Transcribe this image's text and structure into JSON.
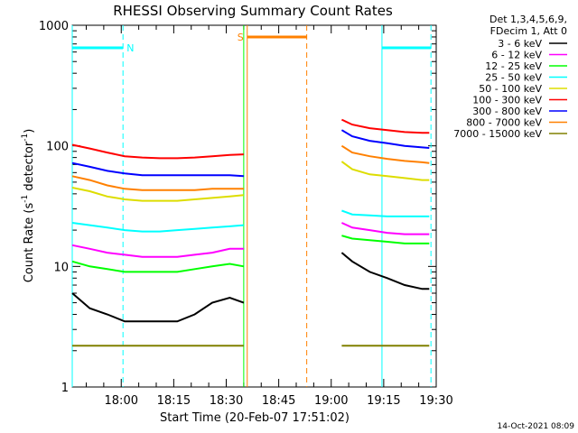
{
  "chart_data": {
    "type": "line",
    "title": "RHESSI Observing Summary Count Rates",
    "xlabel": "Start Time (20-Feb-07 17:51:02)",
    "ylabel_main": "Count Rate (s",
    "ylabel_sup1": "-1",
    "ylabel_mid": " detector",
    "ylabel_sup2": "-1",
    "ylabel_end": ")",
    "yscale": "log",
    "ylim": [
      1,
      1000
    ],
    "xlim_minutes": [
      -5,
      99
    ],
    "x_ticks": [
      {
        "min": 9,
        "label": "18:00"
      },
      {
        "min": 24,
        "label": "18:15"
      },
      {
        "min": 39,
        "label": "18:30"
      },
      {
        "min": 54,
        "label": "18:45"
      },
      {
        "min": 69,
        "label": "19:00"
      },
      {
        "min": 84,
        "label": "19:15"
      },
      {
        "min": 99,
        "label": "19:30"
      }
    ],
    "y_ticks": [
      {
        "value": 1,
        "label": "1"
      },
      {
        "value": 10,
        "label": "10"
      },
      {
        "value": 100,
        "label": "100"
      },
      {
        "value": 1000,
        "label": "1000"
      }
    ],
    "legend_header": [
      "Det 1,3,4,5,6,9,",
      "FDecim 1, Att 0"
    ],
    "series": [
      {
        "name": "3 - 6 keV",
        "color": "#000000"
      },
      {
        "name": "6 - 12 keV",
        "color": "#ff00ff"
      },
      {
        "name": "12 - 25 keV",
        "color": "#00ff00"
      },
      {
        "name": "25 - 50 keV",
        "color": "#00ffff"
      },
      {
        "name": "50 - 100 keV",
        "color": "#dddd00"
      },
      {
        "name": "100 - 300 keV",
        "color": "#ff0000"
      },
      {
        "name": "300 - 800 keV",
        "color": "#0000ff"
      },
      {
        "name": "800 - 7000 keV",
        "color": "#ff8000"
      },
      {
        "name": "7000 - 15000 keV",
        "color": "#808000"
      }
    ],
    "segments": [
      {
        "x": [
          -5,
          0,
          5,
          10,
          15,
          20,
          25,
          30,
          35,
          40,
          44
        ],
        "y": {
          "3 - 6 keV": [
            6,
            4.5,
            4,
            3.5,
            3.5,
            3.5,
            3.5,
            4,
            5,
            5.5,
            5
          ],
          "6 - 12 keV": [
            15,
            14,
            13,
            12.5,
            12,
            12,
            12,
            12.5,
            13,
            14,
            14
          ],
          "12 - 25 keV": [
            11,
            10,
            9.5,
            9,
            9,
            9,
            9,
            9.5,
            10,
            10.5,
            10
          ],
          "25 - 50 keV": [
            23,
            22,
            21,
            20,
            19.5,
            19.5,
            20,
            20.5,
            21,
            21.5,
            22
          ],
          "50 - 100 keV": [
            45,
            42,
            38,
            36,
            35,
            35,
            35,
            36,
            37,
            38,
            39
          ],
          "100 - 300 keV": [
            102,
            95,
            88,
            82,
            80,
            79,
            79,
            80,
            82,
            84,
            85
          ],
          "300 - 800 keV": [
            72,
            67,
            62,
            59,
            57,
            57,
            57,
            57,
            57,
            57,
            56
          ],
          "800 - 7000 keV": [
            56,
            52,
            47,
            44,
            43,
            43,
            43,
            43,
            44,
            44,
            44
          ],
          "7000 - 15000 keV": [
            2.2,
            2.2,
            2.2,
            2.2,
            2.2,
            2.2,
            2.2,
            2.2,
            2.2,
            2.2,
            2.2
          ]
        }
      },
      {
        "x": [
          72,
          75,
          80,
          85,
          90,
          95,
          97
        ],
        "y": {
          "3 - 6 keV": [
            13,
            11,
            9,
            8,
            7,
            6.5,
            6.5
          ],
          "6 - 12 keV": [
            23,
            21,
            20,
            19,
            18.5,
            18.5,
            18.5
          ],
          "12 - 25 keV": [
            18,
            17,
            16.5,
            16,
            15.5,
            15.5,
            15.5
          ],
          "25 - 50 keV": [
            29,
            27,
            26.5,
            26,
            26,
            26,
            26
          ],
          "50 - 100 keV": [
            74,
            64,
            58,
            56,
            54,
            52,
            52
          ],
          "100 - 300 keV": [
            165,
            150,
            140,
            135,
            130,
            128,
            128
          ],
          "300 - 800 keV": [
            135,
            120,
            110,
            105,
            100,
            97,
            96
          ],
          "800 - 7000 keV": [
            100,
            88,
            82,
            78,
            75,
            73,
            72
          ],
          "7000 - 15000 keV": [
            2.2,
            2.2,
            2.2,
            2.2,
            2.2,
            2.2,
            2.2
          ]
        }
      }
    ],
    "annotations": {
      "night": {
        "label": "N",
        "color": "#00ffff",
        "intervals": [
          [
            -5,
            9.5
          ],
          [
            83.5,
            97.5
          ]
        ],
        "level": 650
      },
      "saa": {
        "label": "S",
        "color": "#ff8000",
        "interval": [
          45,
          62
        ],
        "level": 800
      },
      "dashed_verticals": [
        {
          "min": 9.5,
          "color": "#00ffff"
        },
        {
          "min": 97.5,
          "color": "#00ffff"
        },
        {
          "min": 62,
          "color": "#ff8000"
        }
      ],
      "solid_verticals": [
        {
          "min": -5,
          "color": "#00ffff"
        },
        {
          "min": 83.5,
          "color": "#00ffff"
        },
        {
          "min": 44,
          "color": "#00ff00"
        },
        {
          "min": 45,
          "color": "#ff8000"
        }
      ]
    },
    "footer": "14-Oct-2021 08:09"
  }
}
